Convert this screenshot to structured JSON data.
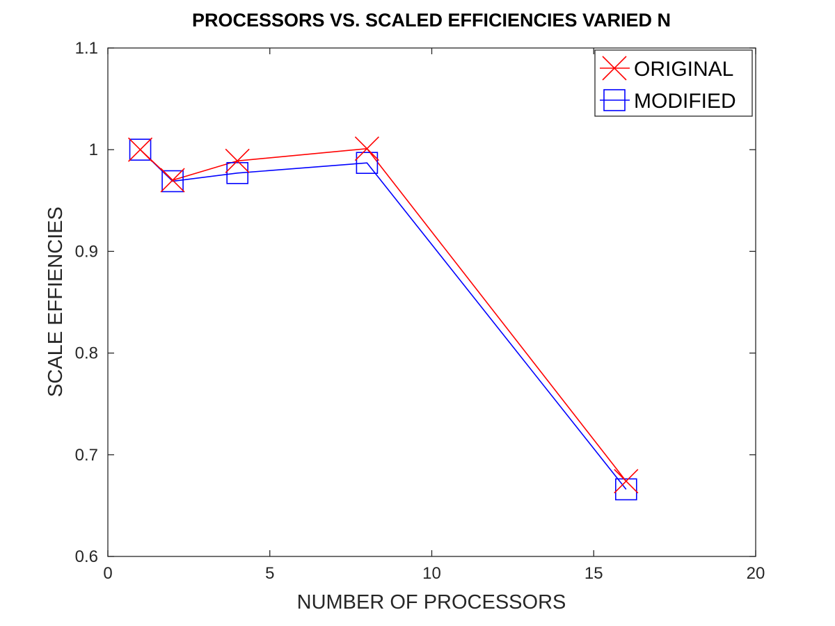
{
  "chart_data": {
    "type": "line",
    "title": "PROCESSORS VS. SCALED EFFICIENCIES VARIED N",
    "xlabel": "NUMBER OF PROCESSORS",
    "ylabel": "SCALE EFFIENCIES",
    "xlim": [
      0,
      20
    ],
    "ylim": [
      0.6,
      1.1
    ],
    "xticks": [
      0,
      5,
      10,
      15,
      20
    ],
    "xtick_labels": [
      "0",
      "5",
      "10",
      "15",
      "20"
    ],
    "yticks": [
      0.6,
      0.7,
      0.8,
      0.9,
      1.0,
      1.1
    ],
    "ytick_labels": [
      "0.6",
      "0.7",
      "0.8",
      "0.9",
      "1",
      "1.1"
    ],
    "grid": false,
    "legend_position": "top-right",
    "series": [
      {
        "name": "ORIGINAL",
        "color": "#ff0000",
        "marker": "x",
        "x": [
          1,
          2,
          4,
          8,
          16
        ],
        "y": [
          1.0,
          0.97,
          0.989,
          1.001,
          0.674
        ]
      },
      {
        "name": "MODIFIED",
        "color": "#0000ff",
        "marker": "square",
        "x": [
          1,
          2,
          4,
          8,
          16
        ],
        "y": [
          1.0,
          0.969,
          0.977,
          0.987,
          0.666
        ]
      }
    ]
  }
}
